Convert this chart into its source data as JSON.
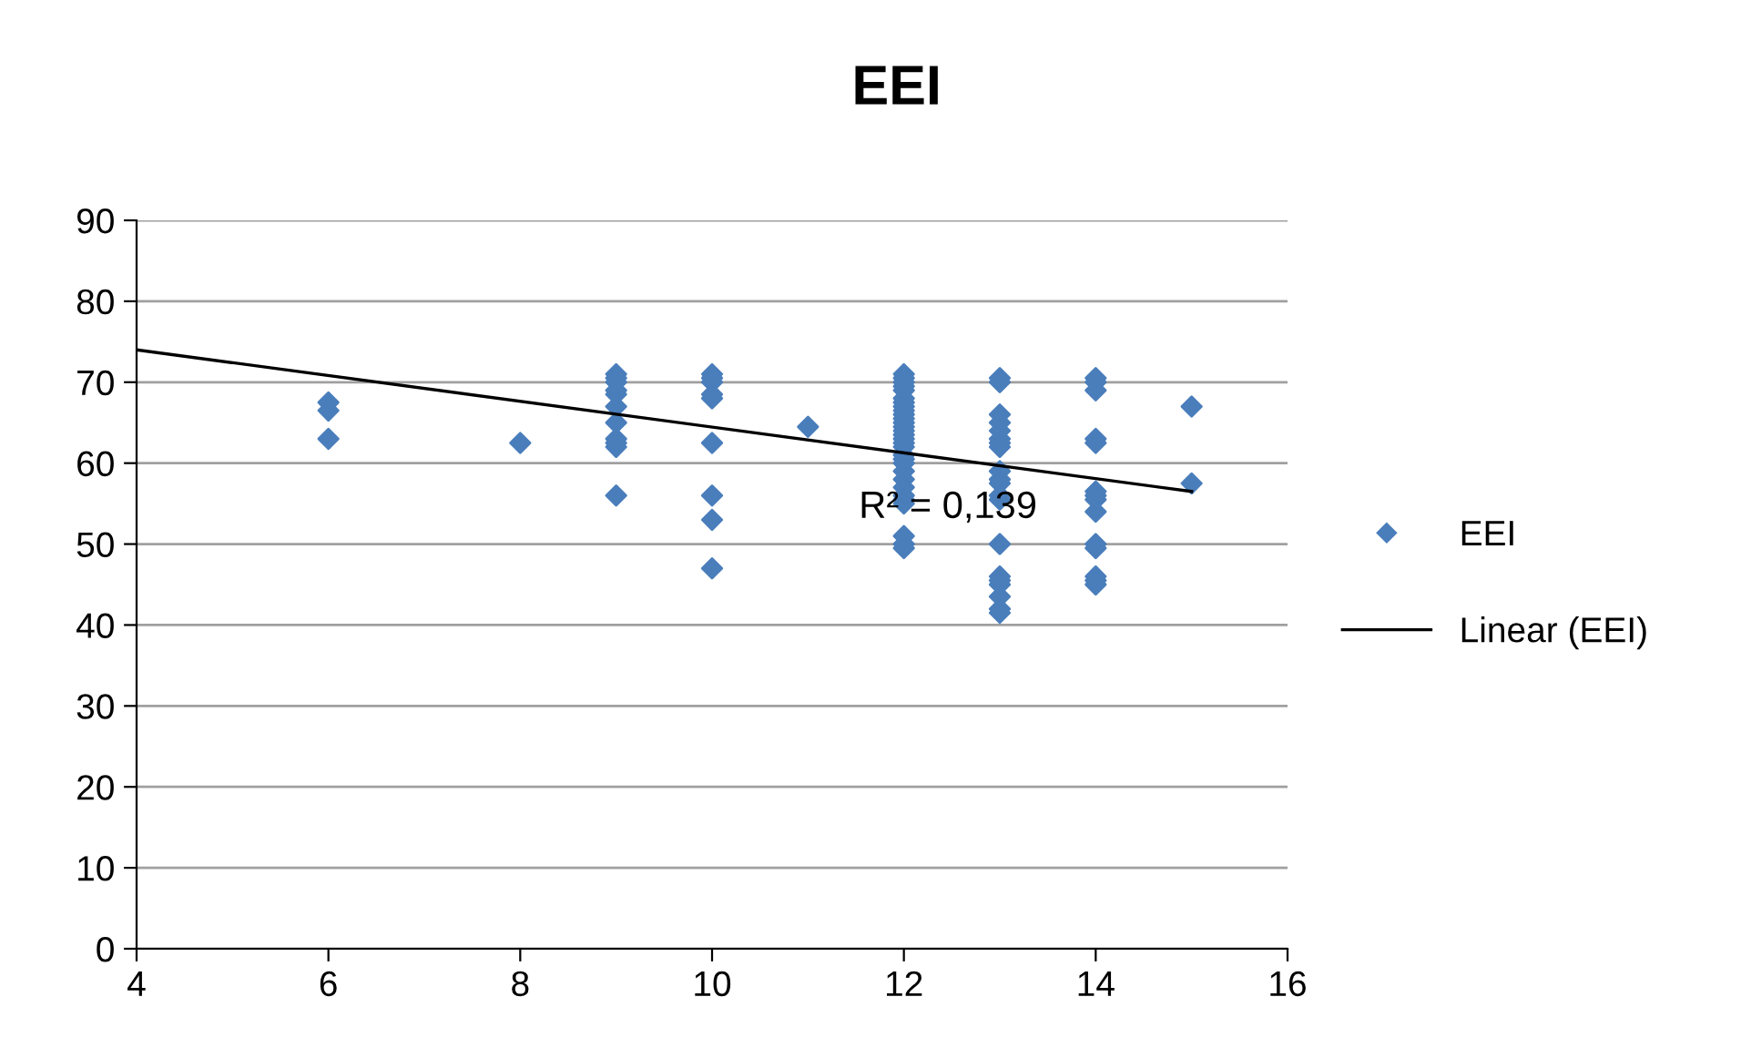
{
  "chart_data": {
    "type": "scatter",
    "title": "EEI",
    "xlim": [
      4,
      16
    ],
    "xticks": [
      4,
      6,
      8,
      10,
      12,
      14,
      16
    ],
    "ylim": [
      0,
      90
    ],
    "yticks": [
      0,
      10,
      20,
      30,
      40,
      50,
      60,
      70,
      80,
      90
    ],
    "grid": "y",
    "legend": "right",
    "marker": "diamond",
    "series": [
      {
        "name": "EEI",
        "color": "#4a7ebb",
        "x": [
          6,
          6,
          6,
          8,
          9,
          9,
          9,
          9,
          9,
          9,
          9,
          9,
          9,
          9,
          9,
          10,
          10,
          10,
          10,
          10,
          10,
          10,
          10,
          10,
          11,
          12,
          12,
          12,
          12,
          12,
          12,
          12,
          12,
          12,
          12,
          12,
          12,
          12,
          12,
          12,
          12,
          12,
          12,
          12,
          12,
          12,
          12,
          12,
          12,
          12,
          12,
          12,
          12,
          12,
          12,
          13,
          13,
          13,
          13,
          13,
          13,
          13,
          13,
          13,
          13,
          13,
          13,
          13,
          13,
          13,
          13,
          13,
          13,
          13,
          13,
          14,
          14,
          14,
          14,
          14,
          14,
          14,
          14,
          14,
          14,
          14,
          14,
          14,
          14,
          15,
          15
        ],
        "values": [
          67.5,
          66.5,
          63,
          62.5,
          71,
          70.5,
          70,
          69,
          68.5,
          67,
          65,
          63,
          62.5,
          62,
          56,
          71,
          70.5,
          70,
          68.5,
          68,
          62.5,
          56,
          53,
          47,
          64.5,
          71,
          70.5,
          70,
          69.5,
          69,
          68,
          67.5,
          67,
          66.5,
          66,
          65.5,
          65,
          64.5,
          64,
          63.5,
          63,
          62.5,
          62,
          61,
          60.5,
          60,
          59,
          58,
          57,
          56,
          55.5,
          55,
          51,
          50,
          49.5,
          70.5,
          70,
          66,
          65,
          64,
          63,
          62.5,
          62,
          59,
          58,
          57.5,
          56,
          55.5,
          50,
          46,
          45.5,
          45,
          43.5,
          42,
          41.5,
          70.5,
          70,
          69,
          63,
          62.5,
          56.5,
          56,
          55.5,
          54,
          50,
          49.5,
          46,
          45.5,
          45,
          67,
          57.5
        ]
      },
      {
        "name": "Linear (EEI)",
        "type": "line",
        "color": "#000000",
        "line_style": "solid",
        "marker": "none",
        "x": [
          4,
          15
        ],
        "values": [
          74,
          56.5
        ]
      }
    ],
    "annotations": [
      "R² = 0,139"
    ]
  }
}
